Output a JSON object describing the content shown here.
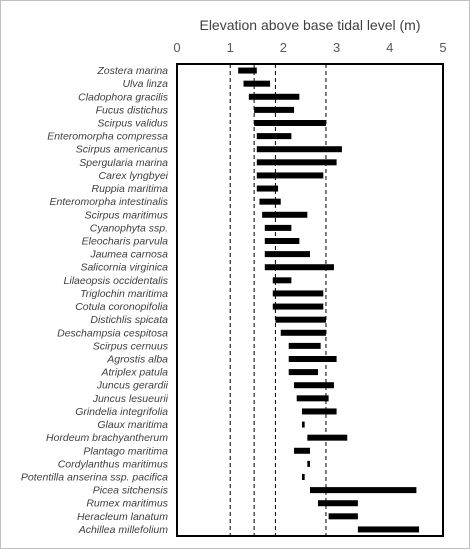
{
  "chart_data": {
    "type": "bar",
    "orientation": "horizontal-floating",
    "title": "Elevation above base tidal level (m)",
    "xlim": [
      0,
      5
    ],
    "x_ticks": [
      "0",
      "1",
      "2",
      "3",
      "4",
      "5"
    ],
    "axis_position": "top",
    "grid": false,
    "reference_lines": [
      1.0,
      1.45,
      1.85,
      2.8
    ],
    "bar_color": "#000000",
    "series": [
      {
        "values": [
          {
            "category": "Zostera marina",
            "start": 1.15,
            "end": 1.5
          },
          {
            "category": "Ulva linza",
            "start": 1.25,
            "end": 1.75
          },
          {
            "category": "Cladophora gracilis",
            "start": 1.35,
            "end": 2.3
          },
          {
            "category": "Fucus distichus",
            "start": 1.45,
            "end": 2.2
          },
          {
            "category": "Scirpus validus",
            "start": 1.45,
            "end": 2.8
          },
          {
            "category": "Enteromorpha compressa",
            "start": 1.5,
            "end": 2.15
          },
          {
            "category": "Scirpus americanus",
            "start": 1.5,
            "end": 3.1
          },
          {
            "category": "Spergularia marina",
            "start": 1.5,
            "end": 3.0
          },
          {
            "category": "Carex lyngbyei",
            "start": 1.5,
            "end": 2.75
          },
          {
            "category": "Ruppia maritima",
            "start": 1.5,
            "end": 1.9
          },
          {
            "category": "Enteromorpha intestinalis",
            "start": 1.55,
            "end": 1.95
          },
          {
            "category": "Scirpus maritimus",
            "start": 1.6,
            "end": 2.45
          },
          {
            "category": "Cyanophyta ssp.",
            "start": 1.65,
            "end": 2.15
          },
          {
            "category": "Eleocharis parvula",
            "start": 1.65,
            "end": 2.3
          },
          {
            "category": "Jaumea carnosa",
            "start": 1.65,
            "end": 2.5
          },
          {
            "category": "Salicornia virginica",
            "start": 1.65,
            "end": 2.95
          },
          {
            "category": "Lilaeopsis occidentalis",
            "start": 1.8,
            "end": 2.15
          },
          {
            "category": "Triglochin maritima",
            "start": 1.8,
            "end": 2.75
          },
          {
            "category": "Cotula coronopifolia",
            "start": 1.8,
            "end": 2.75
          },
          {
            "category": "Distichlis spicata",
            "start": 1.85,
            "end": 2.8
          },
          {
            "category": "Deschampsia cespitosa",
            "start": 1.95,
            "end": 2.8
          },
          {
            "category": "Scirpus cernuus",
            "start": 2.1,
            "end": 2.7
          },
          {
            "category": "Agrostis alba",
            "start": 2.1,
            "end": 3.0
          },
          {
            "category": "Atriplex patula",
            "start": 2.1,
            "end": 2.65
          },
          {
            "category": "Juncus gerardii",
            "start": 2.2,
            "end": 2.95
          },
          {
            "category": "Juncus lesueurii",
            "start": 2.25,
            "end": 2.85
          },
          {
            "category": "Grindelia integrifolia",
            "start": 2.35,
            "end": 3.0
          },
          {
            "category": "Glaux maritima",
            "start": 2.35,
            "end": 2.4
          },
          {
            "category": "Hordeum brachyantherum",
            "start": 2.45,
            "end": 3.2
          },
          {
            "category": "Plantago maritima",
            "start": 2.2,
            "end": 2.5
          },
          {
            "category": "Cordylanthus maritimus",
            "start": 2.45,
            "end": 2.5
          },
          {
            "category": "Potentilla anserina ssp. pacifica",
            "start": 2.35,
            "end": 2.4
          },
          {
            "category": "Picea sitchensis",
            "start": 2.5,
            "end": 4.5
          },
          {
            "category": "Rumex maritimus",
            "start": 2.65,
            "end": 3.4
          },
          {
            "category": "Heracleum lanatum",
            "start": 2.85,
            "end": 3.4
          },
          {
            "category": "Achillea millefolium",
            "start": 3.4,
            "end": 4.55
          }
        ]
      }
    ]
  }
}
